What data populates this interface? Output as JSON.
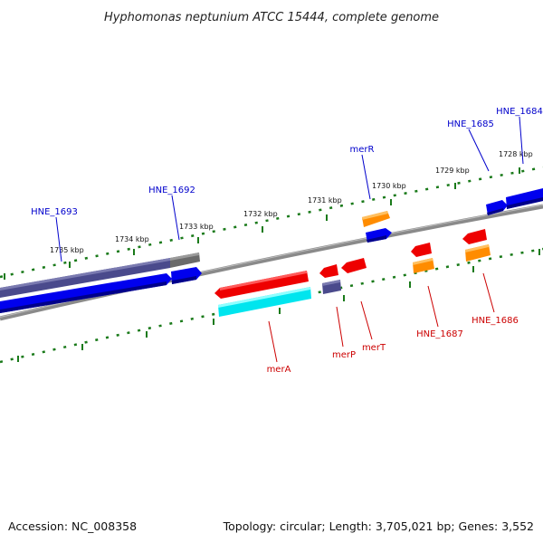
{
  "title": "Hyphomonas neptunium ATCC 15444, complete genome",
  "footer": {
    "accession": "Accession: NC_008358",
    "summary": "Topology: circular; Length: 3,705,021 bp; Genes: 3,552"
  },
  "scale_ticks": [
    "1735 kbp",
    "1734 kbp",
    "1733 kbp",
    "1732 kbp",
    "1731 kbp",
    "1730 kbp",
    "1729 kbp",
    "1728 kbp"
  ],
  "gene_labels": {
    "upper": [
      "HNE_1693",
      "HNE_1692",
      "merR",
      "HNE_1685",
      "HNE_1684"
    ],
    "lower": [
      "merA",
      "merP",
      "merT",
      "HNE_1687",
      "HNE_1686"
    ]
  },
  "colors": {
    "upper_label": "#0000cc",
    "lower_label": "#cc0000",
    "backbone": "#888888",
    "tick_green": "#1a7a1a",
    "cds_forward": "#0000ee",
    "cds_reverse": "#ee0000",
    "orange": "#ff8c00",
    "cyan": "#00e5ee",
    "slate": "#4a4a8c",
    "gray": "#666666"
  }
}
